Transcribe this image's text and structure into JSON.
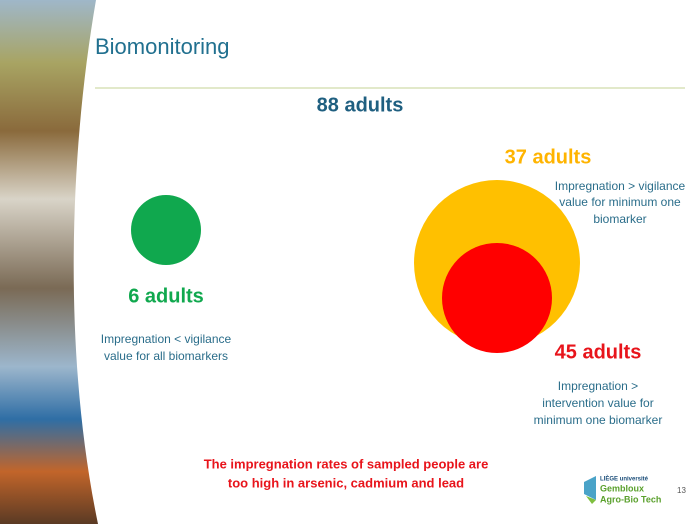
{
  "title": "Biomonitoring",
  "total": "88 adults",
  "groups": [
    {
      "label": "6 adults",
      "description": [
        "Impregnation < vigilance",
        "value for all biomarkers"
      ]
    },
    {
      "label": "37 adults",
      "description": [
        "Impregnation > vigilance",
        "value for minimum one",
        "biomarker"
      ]
    },
    {
      "label": "45 adults",
      "description": [
        "Impregnation >",
        "intervention value for",
        "minimum one biomarker"
      ]
    }
  ],
  "note": [
    "The impregnation rates of sampled people are",
    "too high in arsenic, cadmium and lead"
  ],
  "logo": [
    "LIÈGE université",
    "Gembloux",
    "Agro-Bio Tech"
  ],
  "page_number": "13"
}
